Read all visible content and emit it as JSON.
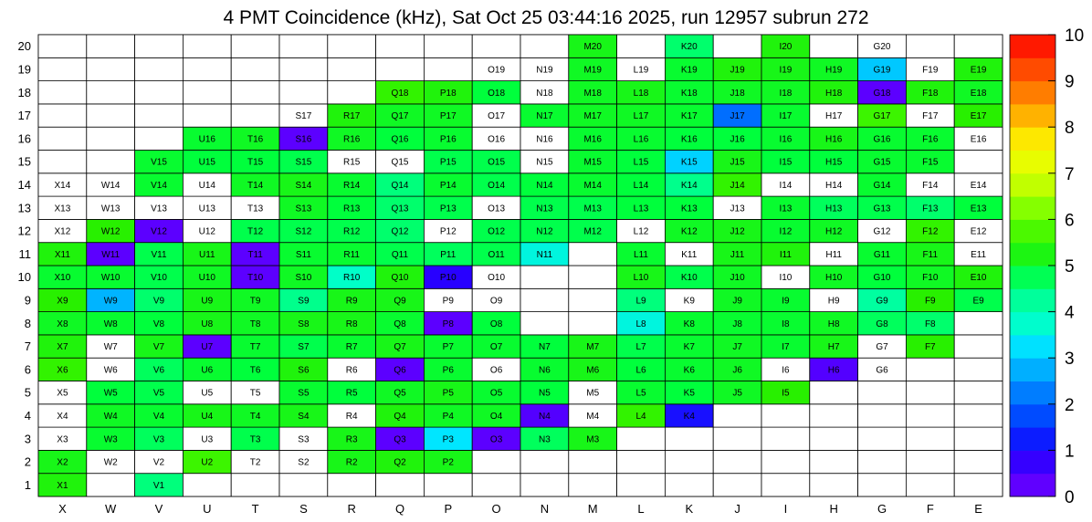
{
  "chart_data": {
    "type": "heatmap",
    "title": "4 PMT Coincidence (kHz), Sat Oct 25 03:44:16 2025, run 12957 subrun 272",
    "x_categories": [
      "X",
      "W",
      "V",
      "U",
      "T",
      "S",
      "R",
      "Q",
      "P",
      "O",
      "N",
      "M",
      "L",
      "K",
      "J",
      "I",
      "H",
      "G",
      "F",
      "E"
    ],
    "y_categories": [
      "1",
      "2",
      "3",
      "4",
      "5",
      "6",
      "7",
      "8",
      "9",
      "10",
      "11",
      "12",
      "13",
      "14",
      "15",
      "16",
      "17",
      "18",
      "19",
      "20"
    ],
    "color_scale": {
      "min": 0,
      "max": 10,
      "ticks": [
        "0",
        "1",
        "2",
        "3",
        "4",
        "5",
        "6",
        "7",
        "8",
        "9",
        "10"
      ]
    },
    "rows": {
      "1": [
        "X1:5.3",
        "",
        "V1:4.5",
        "",
        "",
        "",
        "",
        "",
        "",
        "",
        "",
        "",
        "",
        "",
        "",
        "",
        "",
        "",
        "",
        ""
      ],
      "2": [
        "X2:5.2",
        "W2:",
        "V2:",
        "U2:5.6",
        "T2:",
        "S2:",
        "R2:5.2",
        "Q2:5.3",
        "P2:5.2",
        "",
        "",
        "",
        "",
        "",
        "",
        "",
        "",
        "",
        "",
        ""
      ],
      "3": [
        "X3:",
        "W3:5",
        "V3:4.7",
        "U3:",
        "T3:4.8",
        "S3:",
        "R3:5.2",
        "Q3:0.3",
        "P3:3.3",
        "O3:0.3",
        "N3:4.7",
        "M3:5.2",
        "",
        "",
        "",
        "",
        "",
        "",
        "",
        ""
      ],
      "4": [
        "X4:",
        "W4:5.1",
        "V4:5",
        "U4:5.2",
        "T4:5.1",
        "S4:5.2",
        "R4:",
        "Q4:5.3",
        "P4:5.1",
        "O4:5.1",
        "N4:0.4",
        "M4:",
        "L4:5.5",
        "K4:1.1",
        "",
        "",
        "",
        "",
        "",
        ""
      ],
      "5": [
        "X5:",
        "W5:4.9",
        "V5:4.8",
        "U5:",
        "T5:",
        "S5:5",
        "R5:4.9",
        "Q5:5.1",
        "P5:5.2",
        "O5:5",
        "N5:4.9",
        "M5:",
        "L5:5",
        "K5:4.9",
        "J5:5.1",
        "I5:5.4",
        "",
        "",
        "",
        ""
      ],
      "6": [
        "X6:5.5",
        "W6:",
        "V6:4.7",
        "U6:5",
        "T6:4.9",
        "S6:5.3",
        "R6:",
        "Q6:0.3",
        "P6:5",
        "O6:",
        "N6:5",
        "M6:5.2",
        "L6:4.9",
        "K6:5",
        "J6:5.1",
        "I6:",
        "H6:0.4",
        "G6:",
        "",
        ""
      ],
      "7": [
        "X7:5.3",
        "W7:",
        "V7:5.2",
        "U7:0.3",
        "T7:5",
        "S7:4.8",
        "R7:5",
        "Q7:5.2",
        "P7:5",
        "O7:5",
        "N7:4.9",
        "M7:5.2",
        "L7:4.8",
        "K7:5",
        "J7:5.1",
        "I7:5",
        "H7:5.2",
        "G7:",
        "F7:5.4",
        ""
      ],
      "8": [
        "X8:5.1",
        "W8:5",
        "V8:4.9",
        "U8:5.2",
        "T8:5.1",
        "S8:5.2",
        "R8:5.2",
        "Q8:5",
        "P8:0.3",
        "O8:4.9",
        "",
        "",
        "L8:3.6",
        "K8:5",
        "J8:5",
        "I8:5",
        "H8:5.1",
        "G8:4.7",
        "F8:4.6",
        ""
      ],
      "9": [
        "X9:5.4",
        "W9:2.8",
        "V9:4.6",
        "U9:5.2",
        "T9:5.1",
        "S9:4.4",
        "R9:5.2",
        "Q9:5.2",
        "P9:",
        "O9:",
        "",
        "",
        "L9:4.5",
        "K9:",
        "J9:5.1",
        "I9:5",
        "H9:",
        "G9:4.2",
        "F9:5.4",
        "E9:4.8"
      ],
      "10": [
        "X10:5",
        "W10:5",
        "V10:4.8",
        "U10:5.1",
        "T10:0.3",
        "S10:5.1",
        "R10:3.8",
        "Q10:5.3",
        "P10:0.9",
        "O10:",
        "",
        "",
        "L10:5.2",
        "K10:4.8",
        "J10:5.1",
        "I10:",
        "H10:5.1",
        "G10:4.9",
        "F10:5.1",
        "E10:5.3"
      ],
      "11": [
        "X11:5.3",
        "W11:0.3",
        "V11:4.8",
        "U11:5.2",
        "T11:0.3",
        "S11:5",
        "R11:5",
        "Q11:4.8",
        "P11:4.7",
        "O11:4.8",
        "N11:3.6",
        "",
        "L11:5",
        "K11:",
        "J11:5.2",
        "I11:5.3",
        "H11:",
        "G11:5",
        "F11:5.2",
        "E11:"
      ],
      "12": [
        "X12:",
        "W12:5.4",
        "V12:0.3",
        "U12:",
        "T12:4.8",
        "S12:4.8",
        "R12:4.8",
        "Q12:4.6",
        "P12:",
        "O12:4.8",
        "N12:4.8",
        "M12:4.8",
        "L12:",
        "K12:5.1",
        "J12:5.2",
        "I12:5",
        "H12:5.1",
        "G12:",
        "F12:5.5",
        "E12:"
      ],
      "13": [
        "X13:",
        "W13:",
        "V13:",
        "U13:",
        "T13:",
        "S13:5.1",
        "R13:4.9",
        "Q13:4.6",
        "P13:4.8",
        "O13:",
        "N13:4.8",
        "M13:4.8",
        "L13:4.9",
        "K13:4.9",
        "J13:",
        "I13:5",
        "H13:4.7",
        "G13:4.8",
        "F13:4.6",
        "E13:4.9"
      ],
      "14": [
        "X14:",
        "W14:",
        "V14:5",
        "U14:",
        "T14:5.1",
        "S14:5.2",
        "R14:5",
        "Q14:4.5",
        "P14:5",
        "O14:4.8",
        "N14:4.9",
        "M14:5",
        "L14:4.9",
        "K14:4.4",
        "J14:5.5",
        "I14:",
        "H14:",
        "G14:5",
        "F14:",
        "E14:"
      ],
      "15": [
        "",
        "",
        "V15:5",
        "U15:4.9",
        "T15:4.9",
        "S15:4.8",
        "R15:",
        "Q15:",
        "P15:4.8",
        "O15:4.8",
        "N15:",
        "M15:5",
        "L15:4.9",
        "K15:3.1",
        "J15:5.2",
        "I15:4.9",
        "H15:4.9",
        "G15:5",
        "F15:5",
        ""
      ],
      "16": [
        "",
        "",
        "",
        "U16:5",
        "T16:5.1",
        "S16:0.3",
        "R16:5.1",
        "Q16:4.9",
        "P16:5",
        "O16:",
        "N16:",
        "M16:5",
        "L16:5",
        "K16:4.9",
        "J16:4.9",
        "I16:5",
        "H16:5.2",
        "G16:5",
        "F16:5",
        "E16:"
      ],
      "17": [
        "",
        "",
        "",
        "",
        "",
        "S17:",
        "R17:5.3",
        "Q17:5.1",
        "P17:5.1",
        "O17:",
        "N17:5",
        "M17:5.1",
        "L17:5.1",
        "K17:5",
        "J17:2.1",
        "I17:5",
        "H17:",
        "G17:5.6",
        "F17:",
        "E17:5.4"
      ],
      "18": [
        "",
        "",
        "",
        "",
        "",
        "",
        "",
        "Q18:5.5",
        "P18:5.3",
        "O18:4.9",
        "N18:",
        "M18:5.1",
        "L18:5.2",
        "K18:5",
        "J18:5.1",
        "I18:5.1",
        "H18:5.3",
        "G18:0.3",
        "F18:5.3",
        "E18:5.1"
      ],
      "19": [
        "",
        "",
        "",
        "",
        "",
        "",
        "",
        "",
        "",
        "O19:",
        "N19:",
        "M19:5.1",
        "L19:",
        "K19:5",
        "J19:5.3",
        "I19:5.2",
        "H19:5.1",
        "G19:3",
        "F19:",
        "E19:5.3"
      ],
      "20": [
        "",
        "",
        "",
        "",
        "",
        "",
        "",
        "",
        "",
        "",
        "",
        "M20:5.2",
        "",
        "K20:4.6",
        "",
        "I20:5.3",
        "",
        "G20:",
        "",
        ""
      ]
    }
  }
}
